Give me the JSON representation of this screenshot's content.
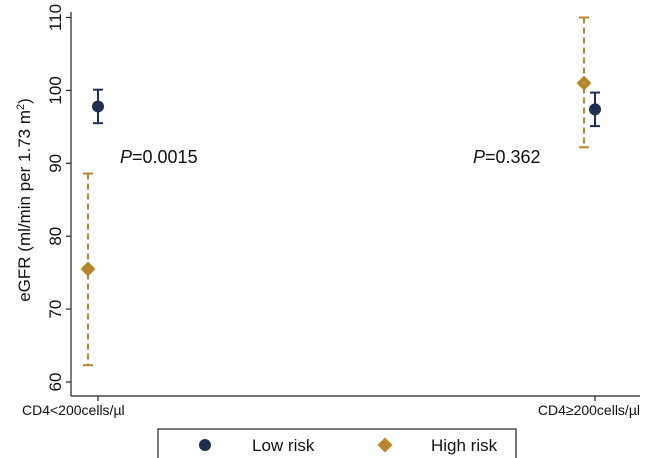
{
  "chart_data": {
    "type": "scatter",
    "title": "",
    "xlabel": "",
    "ylabel": "eGFR (ml/min per 1.73 m",
    "ylabel_sup": "2",
    "ylabel_end": ")",
    "categories": [
      "CD4<200cells/µl",
      "CD4≥200cells/µl"
    ],
    "ylim": [
      60,
      110
    ],
    "yticks": [
      60,
      70,
      80,
      90,
      100,
      110
    ],
    "grid": false,
    "legend_position": "bottom",
    "series": [
      {
        "name": "Low risk",
        "marker": "circle",
        "color": "#1f2f52",
        "line_style": "solid",
        "values": [
          97.8,
          97.4
        ],
        "ci_low": [
          95.5,
          95.1
        ],
        "ci_high": [
          100.1,
          99.7
        ]
      },
      {
        "name": "High risk",
        "marker": "diamond",
        "color": "#b8862b",
        "line_style": "dashed",
        "values": [
          75.5,
          101.0
        ],
        "ci_low": [
          62.3,
          92.2
        ],
        "ci_high": [
          88.6,
          110.0
        ]
      }
    ],
    "annotations": [
      {
        "italic": "P",
        "rest": "=0.0015"
      },
      {
        "italic": "P",
        "rest": "=0.362"
      }
    ]
  }
}
